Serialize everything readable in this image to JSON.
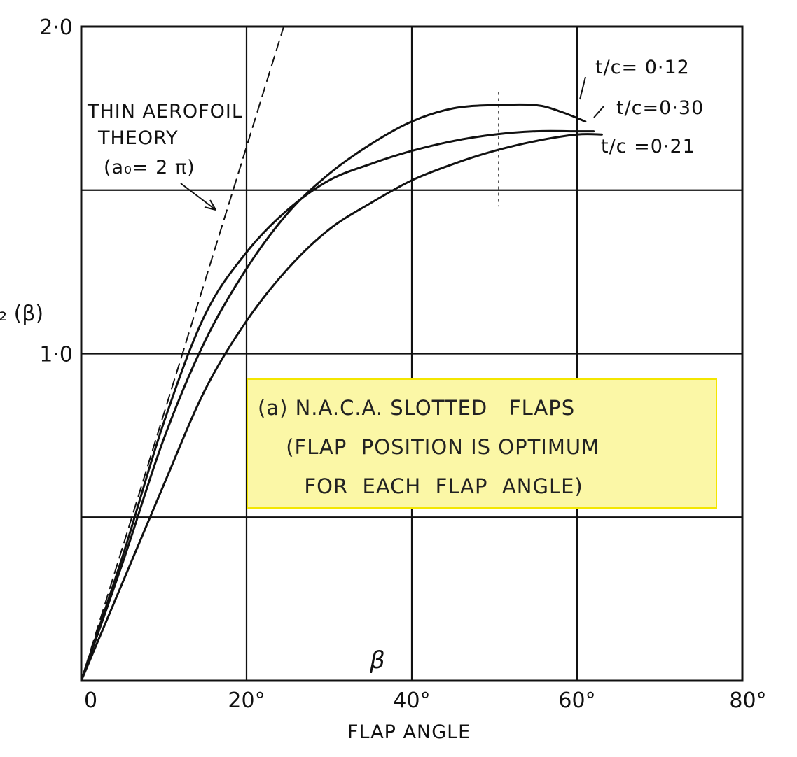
{
  "chart_data": {
    "type": "line",
    "title": "",
    "xlabel": "FLAP ANGLE",
    "x_symbol": "β",
    "ylabel": "₂ (β)",
    "xlim": [
      0,
      80
    ],
    "ylim": [
      0,
      2.0
    ],
    "x_ticks": [
      0,
      20,
      40,
      60,
      80
    ],
    "x_tick_labels": [
      "0",
      "20°",
      "40°",
      "60°",
      "80°"
    ],
    "y_ticks": [
      1.0,
      2.0
    ],
    "y_tick_labels": [
      "1·0",
      "2·0"
    ],
    "grid": true,
    "grid_x": [
      20,
      40,
      60
    ],
    "grid_y": [
      0.5,
      1.0,
      1.5
    ],
    "series": [
      {
        "name": "t/c= 0·12",
        "style": "solid",
        "x": [
          0,
          5,
          10,
          15,
          20,
          25,
          30,
          35,
          40,
          45,
          50,
          55,
          58,
          61
        ],
        "y": [
          0,
          0.36,
          0.74,
          1.04,
          1.26,
          1.43,
          1.55,
          1.64,
          1.71,
          1.75,
          1.76,
          1.76,
          1.74,
          1.71
        ]
      },
      {
        "name": "t/c=0·30",
        "style": "solid",
        "x": [
          0,
          5,
          10,
          15,
          20,
          25,
          30,
          35,
          40,
          45,
          50,
          55,
          60,
          62
        ],
        "y": [
          0,
          0.38,
          0.79,
          1.12,
          1.31,
          1.44,
          1.53,
          1.58,
          1.62,
          1.65,
          1.67,
          1.68,
          1.68,
          1.68
        ]
      },
      {
        "name": "t/c =0·21",
        "style": "solid",
        "x": [
          0,
          5,
          10,
          15,
          20,
          25,
          30,
          35,
          40,
          45,
          50,
          55,
          60,
          63
        ],
        "y": [
          0,
          0.3,
          0.6,
          0.89,
          1.1,
          1.26,
          1.38,
          1.46,
          1.53,
          1.58,
          1.62,
          1.65,
          1.67,
          1.67
        ]
      },
      {
        "name": "thin aerofoil theory",
        "style": "dashed",
        "x": [
          0,
          24.5
        ],
        "y": [
          0,
          2.0
        ]
      }
    ],
    "annotations": {
      "theory": [
        "THIN AEROFOIL",
        "THEORY",
        "(a₀= 2 π)"
      ],
      "note": [
        "(a) N.A.C.A. SLOTTED   FLAPS",
        " (FLAP  POSITION IS OPTIMUM",
        "  FOR  EACH  FLAP  ANGLE)"
      ]
    },
    "legend": "inline labels at curve ends (top-right)",
    "colors": {
      "ink": "#111111",
      "highlight_fill": "#fbf7a6",
      "highlight_border": "#f3e600"
    }
  }
}
